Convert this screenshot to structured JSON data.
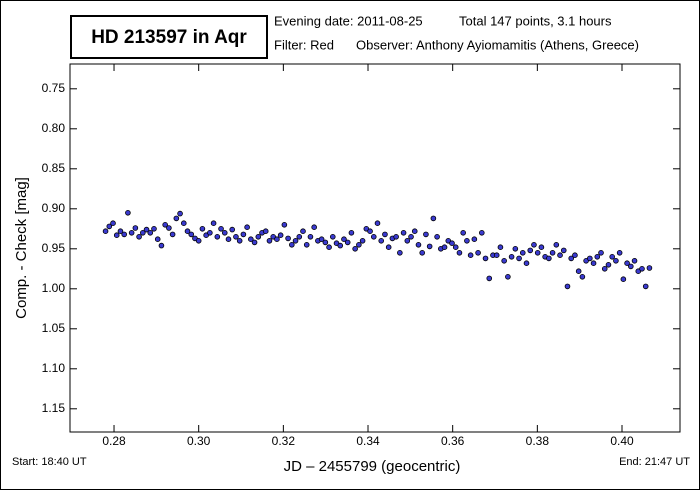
{
  "chart_data": {
    "type": "scatter",
    "title": "HD 213597 in Aqr",
    "info": [
      "Evening date: 2011-08-25",
      "Total 147 points, 3.1 hours",
      "Filter: Red",
      "Observer: Anthony Ayiomamitis (Athens, Greece)"
    ],
    "xlabel": "JD – 2455799  (geocentric)",
    "ylabel": "Comp. - Check [mag]",
    "start_label": "Start: 18:40 UT",
    "end_label": "End: 21:47 UT",
    "xlim": [
      0.2696,
      0.4137
    ],
    "ylim": [
      0.719,
      1.179
    ],
    "invert_y": true,
    "xticks": [
      0.28,
      {
        "value": 0.3,
        "label": "0.30"
      },
      0.32,
      0.34,
      0.36,
      0.38,
      {
        "value": 0.4,
        "label": "0.40"
      }
    ],
    "yticks": [
      0.75,
      {
        "value": 0.8,
        "label": "0.80"
      },
      0.85,
      {
        "value": 0.9,
        "label": "0.90"
      },
      0.95,
      {
        "value": 1.0,
        "label": "1.00"
      },
      1.05,
      {
        "value": 1.1,
        "label": "1.10"
      },
      1.15
    ],
    "color": "#3a3ad0",
    "series": [
      {
        "name": "Comp. - Check",
        "x": [
          0.278,
          0.27888,
          0.27976,
          0.28064,
          0.28152,
          0.2824,
          0.28328,
          0.28416,
          0.28504,
          0.28592,
          0.2868,
          0.28768,
          0.28856,
          0.28944,
          0.29032,
          0.2912,
          0.29208,
          0.29296,
          0.29384,
          0.29472,
          0.2956,
          0.29648,
          0.29736,
          0.29824,
          0.29912,
          0.3,
          0.30088,
          0.30176,
          0.30264,
          0.30352,
          0.3044,
          0.30528,
          0.30616,
          0.30704,
          0.30792,
          0.3088,
          0.30968,
          0.31056,
          0.31144,
          0.31232,
          0.3132,
          0.31408,
          0.31496,
          0.31584,
          0.31672,
          0.3176,
          0.31848,
          0.31936,
          0.32024,
          0.32112,
          0.322,
          0.32288,
          0.32376,
          0.32464,
          0.32552,
          0.3264,
          0.32728,
          0.32816,
          0.32904,
          0.32992,
          0.3308,
          0.33168,
          0.33256,
          0.33344,
          0.33432,
          0.3352,
          0.33608,
          0.33696,
          0.33784,
          0.33872,
          0.3396,
          0.34048,
          0.34136,
          0.34224,
          0.34312,
          0.344,
          0.34488,
          0.34576,
          0.34664,
          0.34752,
          0.3484,
          0.34928,
          0.35016,
          0.35104,
          0.35192,
          0.3528,
          0.35368,
          0.35456,
          0.35544,
          0.35632,
          0.3572,
          0.35808,
          0.35896,
          0.35984,
          0.36072,
          0.3616,
          0.36248,
          0.36336,
          0.36424,
          0.36512,
          0.366,
          0.36688,
          0.36776,
          0.36864,
          0.36952,
          0.3704,
          0.37128,
          0.37216,
          0.37304,
          0.37392,
          0.3748,
          0.37568,
          0.37656,
          0.37744,
          0.37832,
          0.3792,
          0.38008,
          0.38096,
          0.38184,
          0.38272,
          0.3836,
          0.38448,
          0.38536,
          0.38624,
          0.38712,
          0.388,
          0.38888,
          0.38976,
          0.39064,
          0.39152,
          0.3924,
          0.39328,
          0.39416,
          0.39504,
          0.39592,
          0.3968,
          0.39768,
          0.39856,
          0.39944,
          0.40032,
          0.4012,
          0.40208,
          0.40296,
          0.40384,
          0.40472,
          0.4056,
          0.40648
        ],
        "values": [
          0.928,
          0.922,
          0.918,
          0.933,
          0.928,
          0.932,
          0.905,
          0.93,
          0.924,
          0.935,
          0.93,
          0.926,
          0.93,
          0.925,
          0.938,
          0.946,
          0.92,
          0.924,
          0.932,
          0.912,
          0.906,
          0.918,
          0.928,
          0.932,
          0.937,
          0.94,
          0.925,
          0.933,
          0.93,
          0.918,
          0.935,
          0.925,
          0.93,
          0.938,
          0.926,
          0.935,
          0.94,
          0.932,
          0.923,
          0.938,
          0.942,
          0.935,
          0.93,
          0.928,
          0.94,
          0.935,
          0.938,
          0.933,
          0.92,
          0.937,
          0.945,
          0.94,
          0.935,
          0.928,
          0.945,
          0.935,
          0.923,
          0.94,
          0.938,
          0.942,
          0.948,
          0.935,
          0.943,
          0.946,
          0.938,
          0.942,
          0.93,
          0.95,
          0.945,
          0.94,
          0.925,
          0.928,
          0.935,
          0.918,
          0.94,
          0.932,
          0.948,
          0.937,
          0.935,
          0.955,
          0.93,
          0.94,
          0.935,
          0.928,
          0.945,
          0.955,
          0.932,
          0.947,
          0.912,
          0.935,
          0.95,
          0.948,
          0.94,
          0.943,
          0.948,
          0.955,
          0.93,
          0.94,
          0.958,
          0.938,
          0.955,
          0.93,
          0.962,
          0.987,
          0.958,
          0.958,
          0.948,
          0.965,
          0.985,
          0.96,
          0.95,
          0.962,
          0.955,
          0.968,
          0.952,
          0.945,
          0.955,
          0.948,
          0.96,
          0.962,
          0.955,
          0.945,
          0.958,
          0.952,
          0.997,
          0.962,
          0.958,
          0.978,
          0.985,
          0.965,
          0.962,
          0.968,
          0.96,
          0.955,
          0.975,
          0.97,
          0.96,
          0.965,
          0.955,
          0.988,
          0.968,
          0.972,
          0.965,
          0.978,
          0.975,
          0.997,
          0.974
        ]
      }
    ]
  }
}
